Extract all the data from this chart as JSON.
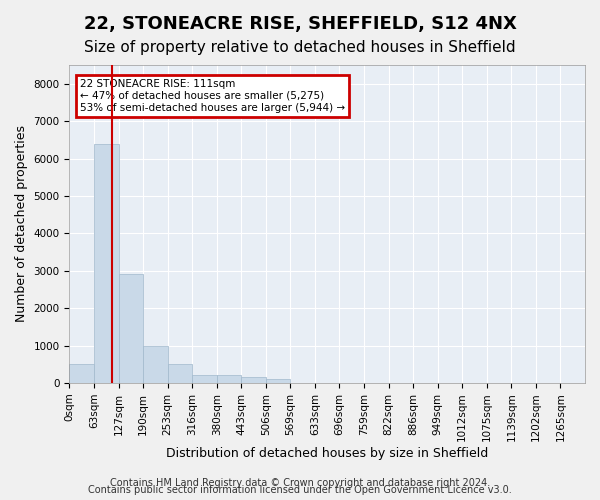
{
  "title1": "22, STONEACRE RISE, SHEFFIELD, S12 4NX",
  "title2": "Size of property relative to detached houses in Sheffield",
  "xlabel": "Distribution of detached houses by size in Sheffield",
  "ylabel": "Number of detached properties",
  "bar_color": "#c9d9e8",
  "bar_edge_color": "#a0b8cc",
  "background_color": "#e8eef5",
  "grid_color": "#ffffff",
  "vline_color": "#cc0000",
  "vline_x": 1.75,
  "annotation_text": "22 STONEACRE RISE: 111sqm\n← 47% of detached houses are smaller (5,275)\n53% of semi-detached houses are larger (5,944) →",
  "annotation_box_color": "#cc0000",
  "ylim": [
    0,
    8500
  ],
  "yticks": [
    0,
    1000,
    2000,
    3000,
    4000,
    5000,
    6000,
    7000,
    8000
  ],
  "bin_labels": [
    "0sqm",
    "63sqm",
    "127sqm",
    "190sqm",
    "253sqm",
    "316sqm",
    "380sqm",
    "443sqm",
    "506sqm",
    "569sqm",
    "633sqm",
    "696sqm",
    "759sqm",
    "822sqm",
    "886sqm",
    "949sqm",
    "1012sqm",
    "1075sqm",
    "1139sqm",
    "1202sqm",
    "1265sqm"
  ],
  "bar_heights": [
    500,
    6400,
    2900,
    1000,
    500,
    200,
    200,
    150,
    100,
    0,
    0,
    0,
    0,
    0,
    0,
    0,
    0,
    0,
    0,
    0,
    0
  ],
  "footer1": "Contains HM Land Registry data © Crown copyright and database right 2024.",
  "footer2": "Contains public sector information licensed under the Open Government Licence v3.0.",
  "title1_fontsize": 13,
  "title2_fontsize": 11,
  "tick_fontsize": 7.5,
  "ylabel_fontsize": 9,
  "xlabel_fontsize": 9,
  "footer_fontsize": 7
}
